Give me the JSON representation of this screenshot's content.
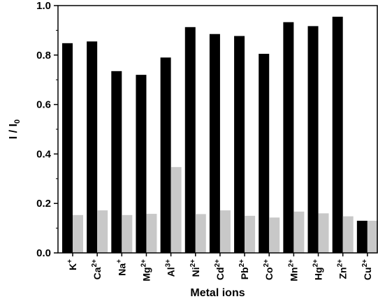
{
  "chart_data": {
    "type": "bar",
    "categories": [
      {
        "base": "K",
        "sup": "+"
      },
      {
        "base": "Ca",
        "sup": "2+"
      },
      {
        "base": "Na",
        "sup": "+"
      },
      {
        "base": "Mg",
        "sup": "2+"
      },
      {
        "base": "Al",
        "sup": "3+"
      },
      {
        "base": "Ni",
        "sup": "2+"
      },
      {
        "base": "Cd",
        "sup": "2+"
      },
      {
        "base": "Pb",
        "sup": "2+"
      },
      {
        "base": "Co",
        "sup": "2+"
      },
      {
        "base": "Mn",
        "sup": "2+"
      },
      {
        "base": "Hg",
        "sup": "2+"
      },
      {
        "base": "Zn",
        "sup": "2+"
      },
      {
        "base": "Cu",
        "sup": "2+"
      }
    ],
    "series": [
      {
        "color": "#000000",
        "values": [
          0.848,
          0.855,
          0.735,
          0.72,
          0.79,
          0.913,
          0.885,
          0.877,
          0.805,
          0.933,
          0.917,
          0.955,
          0.13
        ]
      },
      {
        "color": "#c8c8c8",
        "values": [
          0.153,
          0.172,
          0.153,
          0.158,
          0.347,
          0.157,
          0.172,
          0.15,
          0.143,
          0.167,
          0.16,
          0.148,
          0.13
        ]
      }
    ],
    "xlabel": "Metal ions",
    "ylabel": {
      "main": "I / I",
      "sub": "0"
    },
    "ylim": [
      0.0,
      1.0
    ],
    "yticks": [
      "0.0",
      "0.2",
      "0.4",
      "0.6",
      "0.8",
      "1.0"
    ],
    "grid": false,
    "legend": "none"
  }
}
